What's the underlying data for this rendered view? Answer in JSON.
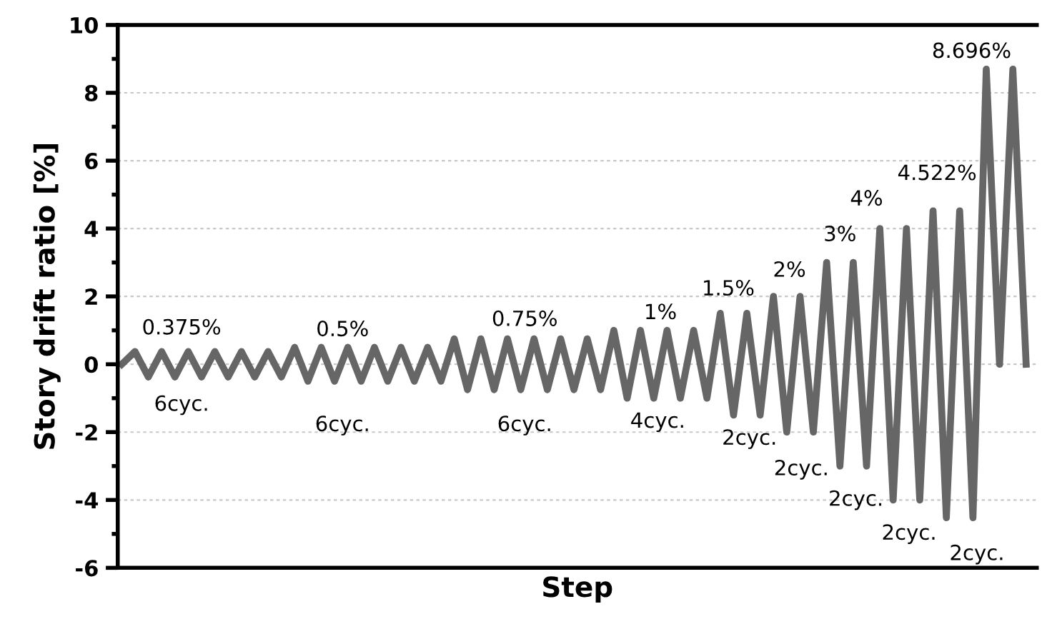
{
  "chart_data": {
    "type": "line",
    "xlabel": "Step",
    "ylabel": "Story drift ratio [%]",
    "categories": [
      null,
      null,
      null,
      null,
      null,
      null,
      null,
      null,
      null,
      null,
      null,
      null,
      null,
      null,
      null,
      null,
      null,
      null,
      null,
      null,
      null,
      null,
      null,
      null,
      null,
      null,
      null,
      null,
      null,
      null,
      null,
      null,
      null,
      null,
      null,
      null,
      null,
      null,
      null,
      null,
      null,
      null,
      null,
      null,
      null,
      null,
      null,
      null,
      null,
      null,
      null,
      null,
      null,
      null,
      null,
      null,
      null,
      null,
      null,
      null,
      null,
      null,
      null,
      null,
      null,
      null,
      null,
      null,
      null
    ],
    "series": [
      {
        "color": "#666666",
        "values": [
          0,
          0.375,
          -0.375,
          0.375,
          -0.375,
          0.375,
          -0.375,
          0.375,
          -0.375,
          0.375,
          -0.375,
          0.375,
          -0.375,
          0.5,
          -0.5,
          0.5,
          -0.5,
          0.5,
          -0.5,
          0.5,
          -0.5,
          0.5,
          -0.5,
          0.5,
          -0.5,
          0.75,
          -0.75,
          0.75,
          -0.75,
          0.75,
          -0.75,
          0.75,
          -0.75,
          0.75,
          -0.75,
          0.75,
          -0.75,
          1,
          -1,
          1,
          -1,
          1,
          -1,
          1,
          -1,
          1.5,
          -1.5,
          1.5,
          -1.5,
          2,
          -2,
          2,
          -2,
          3,
          -3,
          3,
          -3,
          4,
          -4,
          4,
          -4,
          4.522,
          -4.522,
          4.522,
          -4.522,
          8.696,
          0,
          8.696,
          0
        ]
      }
    ],
    "ylim": [
      -6,
      10
    ],
    "yticks": [
      -6,
      -4,
      -2,
      0,
      2,
      4,
      6,
      8,
      10
    ],
    "grid": "y",
    "tick_labels": "y",
    "marker": "none",
    "line_style": "solid",
    "annotations": [
      "0.375%",
      "6cyc.",
      "0.5%",
      "6cyc.",
      "0.75%",
      "6cyc.",
      "1%",
      "4cyc.",
      "1.5%",
      "2cyc.",
      "2%",
      "2cyc.",
      "3%",
      "2cyc.",
      "4%",
      "2cyc.",
      "4.522%",
      "2cyc.",
      "8.696%"
    ]
  }
}
